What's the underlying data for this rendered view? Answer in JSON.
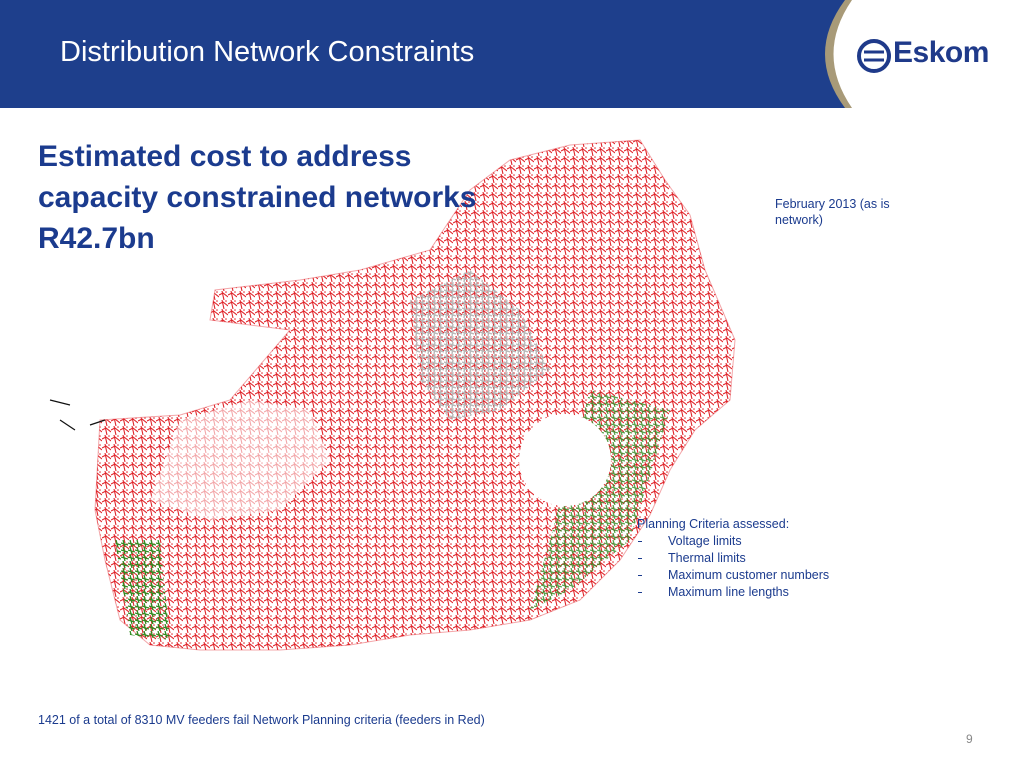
{
  "header": {
    "title": "Distribution Network Constraints",
    "logo": "Eskom"
  },
  "headline": "Estimated cost to address capacity constrained networks R42.7bn",
  "date_note": "February 2013 (as is network)",
  "criteria": {
    "heading": "Planning Criteria assessed:",
    "items": [
      "Voltage limits",
      "Thermal limits",
      "Maximum customer numbers",
      "Maximum line lengths"
    ]
  },
  "footnote": "1421 of a total of 8310 MV feeders fail Network Planning criteria (feeders in Red)",
  "page_number": "9"
}
